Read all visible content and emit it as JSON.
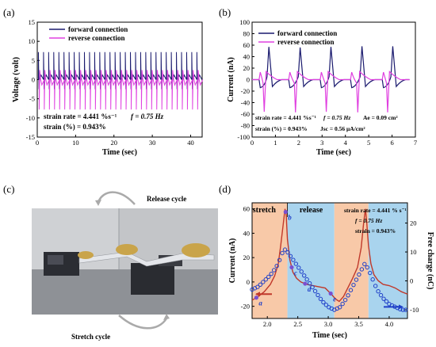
{
  "panels": {
    "a": "(a)",
    "b": "(b)",
    "c": "(c)",
    "d": "(d)"
  },
  "chart_data": [
    {
      "type": "line",
      "panel": "(a)",
      "xlabel": "Time (sec)",
      "ylabel": "Voltage (volt)",
      "xlim": [
        0,
        43
      ],
      "ylim": [
        -15,
        15
      ],
      "xticks": [
        0,
        10,
        20,
        30,
        40
      ],
      "yticks": [
        -15,
        -10,
        -5,
        0,
        5,
        10,
        15
      ],
      "series": [
        {
          "name": "forward connection",
          "color": "#1a1a6e",
          "peak_period": 1.333,
          "peak_max": 7.2,
          "peak_min": -2.5,
          "peak_count": 32
        },
        {
          "name": "reverse connection",
          "color": "#e040e0",
          "peak_period": 1.333,
          "peak_max": 2.5,
          "peak_min": -7.8,
          "peak_count": 32
        }
      ],
      "annotations": [
        "strain rate = 4.441 %s⁻¹",
        "f = 0.75 Hz",
        "strain (%) = 0.943%"
      ]
    },
    {
      "type": "line",
      "panel": "(b)",
      "xlabel": "Time (sec)",
      "ylabel": "Current (nA)",
      "xlim": [
        0,
        7
      ],
      "ylim": [
        -100,
        100
      ],
      "xticks": [
        0,
        1,
        2,
        3,
        4,
        5,
        6,
        7
      ],
      "yticks": [
        -100,
        -80,
        -60,
        -40,
        -20,
        0,
        20,
        40,
        60,
        80,
        100
      ],
      "series": [
        {
          "name": "forward connection",
          "color": "#1a1a6e",
          "peaks_x": [
            0.72,
            2.06,
            3.38,
            4.71,
            6.03
          ],
          "peaks_y": [
            57,
            56,
            57,
            58,
            58
          ],
          "dips_x": [
            0.35,
            1.62,
            2.97,
            4.27,
            5.63
          ],
          "dips_y": [
            -14,
            -14,
            -14,
            -14,
            -14
          ]
        },
        {
          "name": "reverse connection",
          "color": "#e040e0",
          "dips_x": [
            0.52,
            1.86,
            3.18,
            4.53,
            5.81
          ],
          "dips_y": [
            -56,
            -57,
            -56,
            -57,
            -57
          ],
          "peaks_x": [
            0.35,
            1.62,
            2.97,
            4.27,
            5.63
          ],
          "peaks_y": [
            13,
            13,
            13,
            13,
            13
          ]
        }
      ],
      "annotations": [
        "strain rate = 4.441 %s⁻¹",
        "f = 0.75 Hz",
        "Ae = 0.09 cm²",
        "strain (%) = 0.943%",
        "Jsc = 0.56 μA/cm²"
      ]
    },
    {
      "type": "line",
      "panel": "(d)",
      "xlabel": "Time (sec)",
      "ylabel": "Current (nA)",
      "y2label": "Free charge (nC)",
      "xlim": [
        1.75,
        4.3
      ],
      "ylim": [
        -30,
        65
      ],
      "y2lim": [
        -13,
        27
      ],
      "xticks": [
        2.0,
        2.5,
        3.0,
        3.5,
        4.0
      ],
      "yticks": [
        -20,
        0,
        20,
        40,
        60
      ],
      "y2ticks": [
        -10,
        0,
        10,
        20
      ],
      "regions": [
        {
          "label": "stretch",
          "from": 1.75,
          "to": 2.33,
          "color": "#f8c9a8"
        },
        {
          "label": "release",
          "from": 2.33,
          "to": 3.1,
          "color": "#a9d4ee"
        },
        {
          "label": "",
          "from": 3.1,
          "to": 3.66,
          "color": "#f8c9a8"
        },
        {
          "label": "",
          "from": 3.66,
          "to": 4.3,
          "color": "#a9d4ee"
        }
      ],
      "series": [
        {
          "name": "Current",
          "axis": "left",
          "color": "#c0392b",
          "x": [
            1.75,
            1.85,
            1.95,
            2.05,
            2.12,
            2.18,
            2.22,
            2.26,
            2.29,
            2.31,
            2.33,
            2.37,
            2.42,
            2.48,
            2.55,
            2.65,
            2.75,
            2.85,
            2.95,
            3.05,
            3.12,
            3.18,
            3.25,
            3.32,
            3.4,
            3.48,
            3.54,
            3.58,
            3.61,
            3.63,
            3.66,
            3.7,
            3.75,
            3.82,
            3.9,
            4.0,
            4.1,
            4.2,
            4.3
          ],
          "y": [
            -15,
            -12,
            -8,
            -2,
            5,
            15,
            30,
            47,
            60,
            55,
            35,
            18,
            8,
            3,
            0,
            -2,
            -3,
            -4,
            -5,
            -10,
            -14,
            -16,
            -12,
            -5,
            3,
            12,
            28,
            48,
            60,
            50,
            30,
            15,
            6,
            1,
            -2,
            -3,
            -5,
            -8,
            -10
          ]
        },
        {
          "name": "Free charge",
          "axis": "right",
          "color": "#1f3fc8",
          "x": [
            1.75,
            1.85,
            1.95,
            2.05,
            2.12,
            2.18,
            2.23,
            2.28,
            2.33,
            2.4,
            2.5,
            2.6,
            2.7,
            2.8,
            2.9,
            3.0,
            3.1,
            3.2,
            3.3,
            3.4,
            3.5,
            3.55,
            3.6,
            3.66,
            3.72,
            3.8,
            3.9,
            4.0,
            4.1,
            4.2,
            4.3
          ],
          "y": [
            -3,
            -2,
            0,
            2,
            4,
            6,
            9,
            11,
            10,
            8,
            5,
            2,
            -1,
            -4,
            -7,
            -9,
            -10,
            -9,
            -6,
            -2,
            2,
            4,
            6,
            4,
            1,
            -3,
            -6,
            -8,
            -9,
            -10,
            -10
          ]
        }
      ],
      "markers": [
        {
          "label": "a",
          "x": 1.82
        },
        {
          "label": "b",
          "x": 2.3
        },
        {
          "label": "c",
          "x": 2.4
        },
        {
          "label": "d",
          "x": 2.62
        },
        {
          "label": "e",
          "x": 3.04
        }
      ],
      "annotations": [
        "strain rate = 4.441 % s⁻¹",
        "f = 0.75 Hz",
        "strain = 0.943%"
      ]
    }
  ],
  "photo_c": {
    "release_label": "Release cycle",
    "stretch_label": "Stretch cycle"
  }
}
